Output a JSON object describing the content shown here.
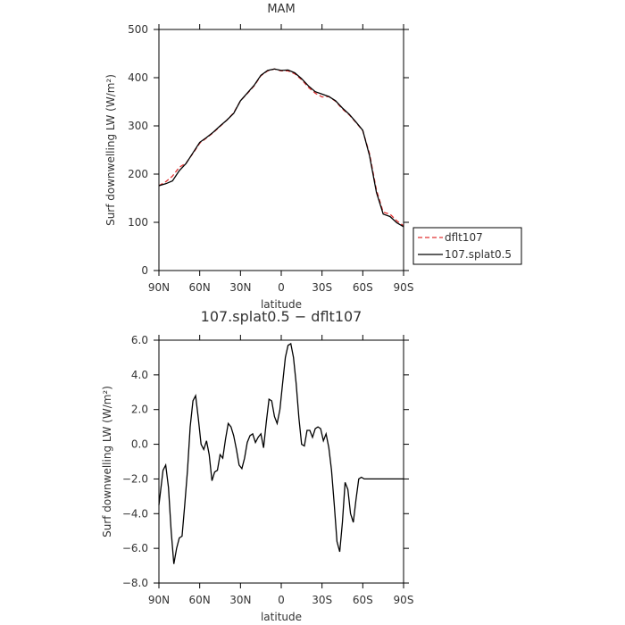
{
  "chart_data": [
    {
      "type": "line",
      "title": "MAM",
      "xlabel": "latitude",
      "ylabel": "Surf downwelling LW (W/m²)",
      "xlim": [
        90,
        -90
      ],
      "ylim": [
        0,
        500
      ],
      "xticks": [
        90,
        60,
        30,
        0,
        -30,
        -60,
        -90
      ],
      "xtick_labels": [
        "90N",
        "60N",
        "30N",
        "0",
        "30S",
        "60S",
        "90S"
      ],
      "yticks": [
        0,
        100,
        200,
        300,
        400,
        500
      ],
      "ytick_labels": [
        "0",
        "100",
        "200",
        "300",
        "400",
        "500"
      ],
      "legend": {
        "placement": "right"
      },
      "series": [
        {
          "name": "dflt107",
          "color": "#e03030",
          "dash": "dashed",
          "x": [
            90,
            85,
            80,
            75,
            70,
            65,
            60,
            55,
            50,
            45,
            40,
            35,
            30,
            25,
            20,
            15,
            10,
            5,
            0,
            -5,
            -10,
            -15,
            -20,
            -25,
            -30,
            -35,
            -40,
            -45,
            -50,
            -55,
            -60,
            -65,
            -70,
            -75,
            -80,
            -85,
            -90
          ],
          "y": [
            176,
            184,
            196,
            214,
            223,
            243,
            264,
            275,
            286,
            299,
            312,
            327,
            352,
            367,
            383,
            404,
            414,
            418,
            414,
            414,
            408,
            396,
            380,
            368,
            360,
            361,
            351,
            335,
            323,
            307,
            290,
            242,
            167,
            121,
            117,
            103,
            93
          ]
        },
        {
          "name": "107.splat0.5",
          "color": "#000000",
          "dash": "solid",
          "x": [
            90,
            85,
            80,
            75,
            70,
            65,
            60,
            55,
            50,
            45,
            40,
            35,
            30,
            25,
            20,
            15,
            10,
            5,
            0,
            -5,
            -10,
            -15,
            -20,
            -25,
            -30,
            -35,
            -40,
            -45,
            -50,
            -55,
            -60,
            -65,
            -70,
            -75,
            -80,
            -85,
            -90
          ],
          "y": [
            176,
            180,
            186,
            207,
            222,
            244,
            266,
            276,
            287,
            300,
            312,
            326,
            352,
            368,
            384,
            405,
            415,
            418,
            415,
            416,
            410,
            398,
            383,
            371,
            366,
            361,
            352,
            337,
            324,
            308,
            291,
            238,
            162,
            117,
            112,
            99,
            91
          ]
        }
      ]
    },
    {
      "type": "line",
      "title": "107.splat0.5 − dflt107",
      "xlabel": "latitude",
      "ylabel": "Surf downwelling LW (W/m²)",
      "xlim": [
        90,
        -90
      ],
      "ylim": [
        -8,
        6
      ],
      "xticks": [
        90,
        60,
        30,
        0,
        -30,
        -60,
        -90
      ],
      "xtick_labels": [
        "90N",
        "60N",
        "30N",
        "0",
        "30S",
        "60S",
        "90S"
      ],
      "yticks": [
        -8,
        -6,
        -4,
        -2,
        0,
        2,
        4,
        6
      ],
      "ytick_labels": [
        "−8.0",
        "−6.0",
        "−4.0",
        "−2.0",
        "0.0",
        "2.0",
        "4.0",
        "6.0"
      ],
      "series": [
        {
          "color": "#000000",
          "x": [
            90,
            87,
            85,
            83,
            81,
            79,
            77,
            75,
            73,
            71,
            69,
            67,
            65,
            63,
            61,
            59,
            57,
            55,
            53,
            51,
            49,
            47,
            45,
            43,
            41,
            39,
            37,
            35,
            33,
            31,
            29,
            27,
            25,
            23,
            21,
            19,
            17,
            15,
            13,
            11,
            9,
            7,
            5,
            3,
            1,
            -1,
            -3,
            -5,
            -7,
            -9,
            -11,
            -13,
            -15,
            -17,
            -19,
            -21,
            -23,
            -25,
            -27,
            -29,
            -31,
            -33,
            -35,
            -37,
            -39,
            -41,
            -43,
            -45,
            -47,
            -49,
            -51,
            -53,
            -55,
            -57,
            -59,
            -61,
            -63,
            -65,
            -67,
            -69,
            -71,
            -73,
            -75,
            -77,
            -79,
            -81,
            -83,
            -85,
            -87,
            -90
          ],
          "y": [
            -3.5,
            -1.5,
            -1.2,
            -2.5,
            -5.0,
            -6.9,
            -6.0,
            -5.4,
            -5.3,
            -3.5,
            -1.5,
            1.0,
            2.5,
            2.8,
            1.5,
            0.0,
            -0.3,
            0.2,
            -0.6,
            -2.1,
            -1.6,
            -1.5,
            -0.6,
            -0.8,
            0.3,
            1.2,
            1.0,
            0.5,
            -0.3,
            -1.2,
            -1.4,
            -0.8,
            0.1,
            0.5,
            0.6,
            0.1,
            0.4,
            0.6,
            -0.2,
            1.3,
            2.6,
            2.5,
            1.6,
            1.2,
            2.0,
            3.5,
            5.0,
            5.7,
            5.8,
            5.0,
            3.5,
            1.5,
            0.0,
            -0.1,
            0.8,
            0.8,
            0.4,
            0.9,
            1.0,
            0.9,
            0.2,
            0.6,
            -0.2,
            -1.5,
            -3.5,
            -5.6,
            -6.2,
            -4.5,
            -2.2,
            -2.6,
            -4.0,
            -4.5,
            -3.2,
            -2.0,
            -1.9,
            -2.0,
            -2.0,
            -2.0,
            -2.0,
            -2.0,
            -2.0,
            -2.0,
            -2.0,
            -2.0,
            -2.0,
            -2.0,
            -2.0,
            -2.0,
            -2.0,
            -2.0
          ]
        }
      ]
    }
  ],
  "legend_labels": [
    "dflt107",
    "107.splat0.5"
  ]
}
